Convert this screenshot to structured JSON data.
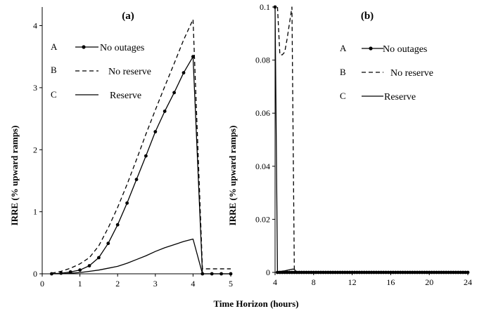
{
  "chart_data": [
    {
      "type": "line",
      "panel_label": "(a)",
      "ylabel": "IRRE (% upward ramps)",
      "xlim": [
        0,
        5
      ],
      "ylim": [
        0,
        4.3
      ],
      "xticks": [
        "0",
        "1",
        "2",
        "3",
        "4",
        "5"
      ],
      "xtick_values": [
        0,
        1,
        2,
        3,
        4,
        5
      ],
      "yticks": [
        "0",
        "1",
        "2",
        "3",
        "4"
      ],
      "ytick_values": [
        0,
        1,
        2,
        3,
        4
      ],
      "legend_letters": [
        "A",
        "B",
        "C"
      ],
      "series": [
        {
          "name": "No outages",
          "style": "solid-marker",
          "x": [
            0.25,
            0.5,
            0.75,
            1.0,
            1.25,
            1.5,
            1.75,
            2.0,
            2.25,
            2.5,
            2.75,
            3.0,
            3.25,
            3.5,
            3.75,
            4.0,
            4.25,
            4.5,
            4.75,
            5.0
          ],
          "y": [
            0.0,
            0.01,
            0.03,
            0.06,
            0.13,
            0.26,
            0.49,
            0.79,
            1.14,
            1.52,
            1.9,
            2.29,
            2.62,
            2.92,
            3.24,
            3.5,
            0.0,
            0.0,
            0.0,
            0.0
          ]
        },
        {
          "name": "No reserve",
          "style": "dashed",
          "x": [
            0.25,
            0.5,
            0.75,
            1.0,
            1.25,
            1.5,
            1.75,
            2.0,
            2.25,
            2.5,
            2.75,
            3.0,
            3.25,
            3.5,
            3.75,
            4.0,
            4.25,
            4.5,
            4.75,
            5.0
          ],
          "y": [
            0.01,
            0.04,
            0.09,
            0.16,
            0.26,
            0.45,
            0.74,
            1.07,
            1.44,
            1.84,
            2.25,
            2.64,
            3.02,
            3.39,
            3.77,
            4.1,
            0.08,
            0.08,
            0.08,
            0.08
          ]
        },
        {
          "name": "Reserve",
          "style": "solid",
          "x": [
            0.25,
            0.5,
            0.75,
            1.0,
            1.25,
            1.5,
            1.75,
            2.0,
            2.25,
            2.5,
            2.75,
            3.0,
            3.25,
            3.5,
            3.75,
            4.0,
            4.25,
            4.5,
            4.75,
            5.0
          ],
          "y": [
            0.0,
            0.0,
            0.01,
            0.02,
            0.04,
            0.06,
            0.09,
            0.12,
            0.17,
            0.23,
            0.29,
            0.36,
            0.42,
            0.47,
            0.52,
            0.56,
            0.0,
            0.0,
            0.0,
            0.0
          ]
        }
      ]
    },
    {
      "type": "line",
      "panel_label": "(b)",
      "ylabel": "IRRE (% upward ramps)",
      "xlim": [
        4,
        24
      ],
      "ylim": [
        0,
        0.1
      ],
      "xticks": [
        "4",
        "8",
        "12",
        "16",
        "20",
        "24"
      ],
      "xtick_values": [
        4,
        8,
        12,
        16,
        20,
        24
      ],
      "yticks": [
        "0",
        "0.02",
        "0.04",
        "0.06",
        "0.08",
        "0.1"
      ],
      "ytick_values": [
        0,
        0.02,
        0.04,
        0.06,
        0.08,
        0.1
      ],
      "legend_letters": [
        "A",
        "B",
        "C"
      ],
      "series": [
        {
          "name": "No outages",
          "style": "solid-marker",
          "x": [
            4.0,
            4.25,
            4.5,
            4.75,
            5.0,
            5.25,
            5.5,
            5.75,
            6.0,
            6.25,
            6.5,
            6.75,
            7.0,
            7.25,
            7.5,
            7.75,
            8.0,
            8.25,
            8.5,
            8.75,
            9.0,
            9.25,
            9.5,
            9.75,
            10.0,
            10.25,
            10.5,
            10.75,
            11.0,
            11.25,
            11.5,
            11.75,
            12.0,
            12.25,
            12.5,
            12.75,
            13.0,
            13.25,
            13.5,
            13.75,
            14.0,
            14.25,
            14.5,
            14.75,
            15.0,
            15.25,
            15.5,
            15.75,
            16.0,
            16.25,
            16.5,
            16.75,
            17.0,
            17.25,
            17.5,
            17.75,
            18.0,
            18.25,
            18.5,
            18.75,
            19.0,
            19.25,
            19.5,
            19.75,
            20.0,
            20.25,
            20.5,
            20.75,
            21.0,
            21.25,
            21.5,
            21.75,
            22.0,
            22.25,
            22.5,
            22.75,
            23.0,
            23.25,
            23.5,
            23.75,
            24.0
          ],
          "y": [
            0.1,
            0.0,
            0.0,
            0.0,
            0.0,
            0.0,
            0.0,
            0.0,
            0.0,
            0.0,
            0.0,
            0.0,
            0.0,
            0.0,
            0.0,
            0.0,
            0.0,
            0.0,
            0.0,
            0.0,
            0.0,
            0.0,
            0.0,
            0.0,
            0.0,
            0.0,
            0.0,
            0.0,
            0.0,
            0.0,
            0.0,
            0.0,
            0.0,
            0.0,
            0.0,
            0.0,
            0.0,
            0.0,
            0.0,
            0.0,
            0.0,
            0.0,
            0.0,
            0.0,
            0.0,
            0.0,
            0.0,
            0.0,
            0.0,
            0.0,
            0.0,
            0.0,
            0.0,
            0.0,
            0.0,
            0.0,
            0.0,
            0.0,
            0.0,
            0.0,
            0.0,
            0.0,
            0.0,
            0.0,
            0.0,
            0.0,
            0.0,
            0.0,
            0.0,
            0.0,
            0.0,
            0.0,
            0.0,
            0.0,
            0.0,
            0.0,
            0.0,
            0.0,
            0.0,
            0.0,
            0.0
          ]
        },
        {
          "name": "No reserve",
          "style": "dashed",
          "x": [
            4.25,
            4.5,
            4.75,
            5.0,
            5.25,
            5.5,
            5.75,
            6.0,
            6.25,
            6.5,
            6.75,
            7.0,
            7.5,
            8.0,
            10.0,
            12.0,
            14.0,
            16.0,
            18.0,
            20.0,
            22.0,
            24.0
          ],
          "y": [
            0.1,
            0.082,
            0.082,
            0.083,
            0.088,
            0.094,
            0.1,
            0.0,
            0.0,
            0.0,
            0.0,
            0.0,
            0.0,
            0.0,
            0.0,
            0.0,
            0.0,
            0.0,
            0.0,
            0.0,
            0.0,
            0.0
          ]
        },
        {
          "name": "Reserve",
          "style": "solid",
          "x": [
            4.25,
            4.5,
            4.75,
            5.0,
            5.25,
            5.5,
            5.75,
            6.0,
            6.25,
            6.5,
            7.0,
            8.0,
            10.0,
            12.0,
            14.0,
            16.0,
            18.0,
            20.0,
            22.0,
            24.0
          ],
          "y": [
            0.0,
            0.0003,
            0.0005,
            0.0006,
            0.0008,
            0.001,
            0.0012,
            0.0012,
            0.0,
            0.0,
            0.0,
            0.0,
            0.0,
            0.0,
            0.0,
            0.0,
            0.0,
            0.0,
            0.0,
            0.0
          ]
        }
      ]
    }
  ],
  "shared_xlabel": "Time Horizon (hours)"
}
